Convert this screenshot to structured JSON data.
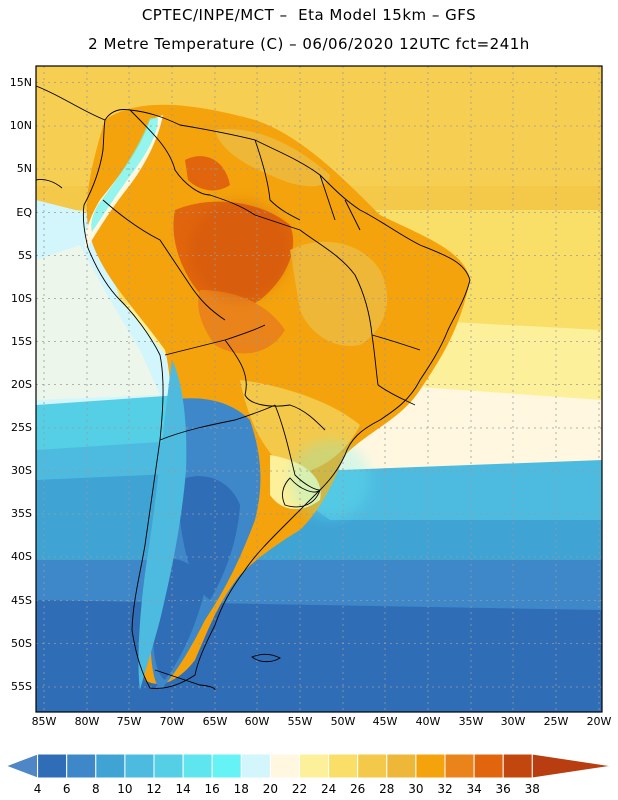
{
  "title_line1": "CPTEC/INPE/MCT –  Eta Model 15km – GFS",
  "title_line2": "2 Metre Temperature (C) – 06/06/2020 12UTC fct=241h",
  "lat_labels": [
    "15N",
    "10N",
    "5N",
    "EQ",
    "5S",
    "10S",
    "15S",
    "20S",
    "25S",
    "30S",
    "35S",
    "40S",
    "45S",
    "50S",
    "55S"
  ],
  "lon_labels": [
    "85W",
    "80W",
    "75W",
    "70W",
    "65W",
    "60W",
    "55W",
    "50W",
    "45W",
    "40W",
    "35W",
    "30W",
    "25W",
    "20W"
  ],
  "colorbar": {
    "labels": [
      "4",
      "6",
      "8",
      "10",
      "12",
      "14",
      "16",
      "18",
      "20",
      "22",
      "24",
      "26",
      "28",
      "30",
      "32",
      "34",
      "36",
      "38"
    ],
    "colors": [
      "#4f86c6",
      "#2f6db6",
      "#3e88c9",
      "#3fa3d4",
      "#4dbbe0",
      "#55cfe6",
      "#5fe5ee",
      "#66f3f5",
      "#d2f6fb",
      "#fff7e0",
      "#fdf09a",
      "#f9df68",
      "#f4c949",
      "#efb737",
      "#f4a30c",
      "#ea831a",
      "#e0650c",
      "#c2470e",
      "#b83d10"
    ]
  }
}
